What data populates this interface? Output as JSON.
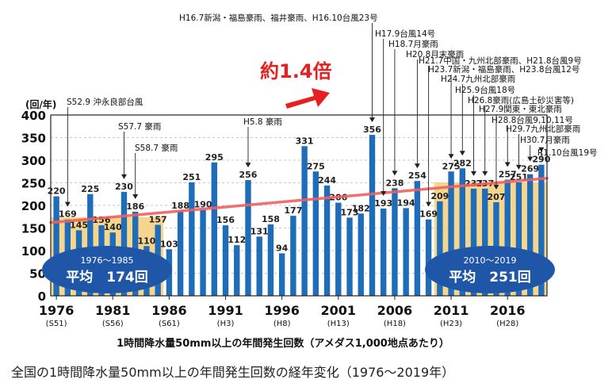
{
  "caption": "全国の1時間降水量50mm以上の年間発生回数の経年変化（1976〜2019年）",
  "trend_label": "約1.4倍",
  "colors": {
    "bar": "#1f6db8",
    "avg_band": "#f5cf7a",
    "trend": "#f06060",
    "arrow": "#e62020",
    "oval": "#1f56a8"
  },
  "avg_early": {
    "period": "1976〜1985",
    "label": "平均　174回",
    "value": 174,
    "from_year": 1976,
    "to_year": 1985
  },
  "avg_late": {
    "period": "2010〜2019",
    "label": "平均　251回",
    "value": 251,
    "from_year": 2010,
    "to_year": 2019
  },
  "chart_data": {
    "type": "bar",
    "ylabel": "(回/年)",
    "xlabel": "1時間降水量50mm以上の年間発生回数（アメダス1,000地点あたり）",
    "ylim": [
      0,
      400
    ],
    "yticks": [
      0,
      50,
      100,
      150,
      200,
      250,
      300,
      350,
      400
    ],
    "grid": true,
    "categories": [
      1976,
      1977,
      1978,
      1979,
      1980,
      1981,
      1982,
      1983,
      1984,
      1985,
      1986,
      1987,
      1988,
      1989,
      1990,
      1991,
      1992,
      1993,
      1994,
      1995,
      1996,
      1997,
      1998,
      1999,
      2000,
      2001,
      2002,
      2003,
      2004,
      2005,
      2006,
      2007,
      2008,
      2009,
      2010,
      2011,
      2012,
      2013,
      2014,
      2015,
      2016,
      2017,
      2018,
      2019
    ],
    "values": [
      220,
      169,
      145,
      225,
      156,
      140,
      230,
      186,
      110,
      157,
      103,
      188,
      251,
      190,
      295,
      156,
      112,
      256,
      131,
      158,
      94,
      177,
      331,
      275,
      244,
      206,
      173,
      182,
      356,
      193,
      238,
      194,
      254,
      169,
      209,
      275,
      282,
      237,
      237,
      207,
      257,
      251,
      269,
      290
    ],
    "x_tick_labels": [
      {
        "year": 1976,
        "label": "1976",
        "era": "(S51)"
      },
      {
        "year": 1981,
        "label": "1981",
        "era": "(S56)"
      },
      {
        "year": 1986,
        "label": "1986",
        "era": "(S61)"
      },
      {
        "year": 1991,
        "label": "1991",
        "era": "(H3)"
      },
      {
        "year": 1996,
        "label": "1996",
        "era": "(H8)"
      },
      {
        "year": 2001,
        "label": "2001",
        "era": "(H13)"
      },
      {
        "year": 2006,
        "label": "2006",
        "era": "(H18)"
      },
      {
        "year": 2011,
        "label": "2011",
        "era": "(H23)"
      },
      {
        "year": 2016,
        "label": "2016",
        "era": "(H28)"
      }
    ],
    "trend_line": {
      "start_year": 1976,
      "start_value": 162,
      "end_year": 2019,
      "end_value": 260
    },
    "annotations": [
      {
        "year": 1977,
        "text": "S52.9 沖永良部台風"
      },
      {
        "year": 1982,
        "text": "S57.7 豪雨"
      },
      {
        "year": 1983,
        "text": "S58.7 豪雨"
      },
      {
        "year": 1993,
        "text": "H5.8 豪雨"
      },
      {
        "year": 2004,
        "text": "H16.7新潟・福島豪雨、福井豪雨、H16.10台風23号"
      },
      {
        "year": 2005,
        "text": "H17.9台風14号"
      },
      {
        "year": 2006,
        "text": "H18.7月豪雨"
      },
      {
        "year": 2008,
        "text": "H20.8月末豪雨"
      },
      {
        "year": 2009,
        "text": "H21.7中国・九州北部豪雨、H21.8台風9号"
      },
      {
        "year": 2011,
        "text": "H23.7新潟・福島豪雨、H23.8台風12号"
      },
      {
        "year": 2012,
        "text": "H24.7九州北部豪雨"
      },
      {
        "year": 2013,
        "text": "H25.9台風18号"
      },
      {
        "year": 2014,
        "text": "H26.8豪雨(広島土砂災害等)"
      },
      {
        "year": 2015,
        "text": "H27.9関東・東北豪雨"
      },
      {
        "year": 2016,
        "text": "H28.8台風9,10,11号"
      },
      {
        "year": 2017,
        "text": "H29.7九州北部豪雨"
      },
      {
        "year": 2018,
        "text": "H30.7月豪雨"
      },
      {
        "year": 2019,
        "text": "R1.10台風19号"
      }
    ]
  }
}
